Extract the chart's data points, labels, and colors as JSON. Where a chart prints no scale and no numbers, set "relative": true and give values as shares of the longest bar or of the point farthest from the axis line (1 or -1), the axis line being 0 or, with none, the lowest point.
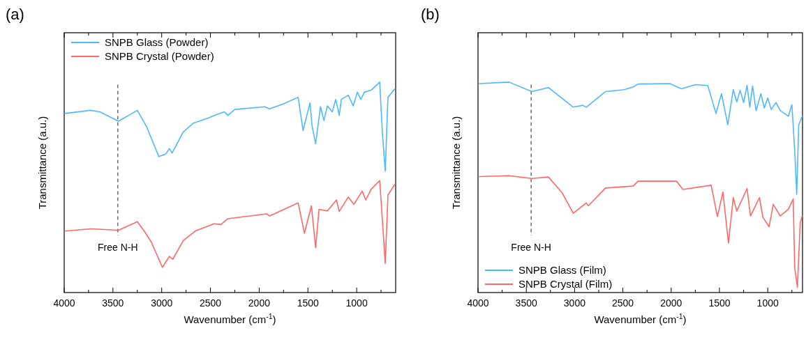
{
  "chart_data": [
    {
      "type": "line",
      "title": "(a)",
      "xlabel": "Wavenumber (cm$^{-1}$)",
      "ylabel": "Transmittance (a.u.)",
      "relative": true,
      "xlim": [
        4000,
        600
      ],
      "xticks": [
        4000,
        {
          "value": 3750,
          "label": null
        },
        3500,
        {
          "value": 3250,
          "label": null
        },
        3000,
        {
          "value": 2750,
          "label": null
        },
        2500,
        {
          "value": 2250,
          "label": null
        },
        2000,
        {
          "value": 1750,
          "label": null
        },
        1500,
        {
          "value": 1250,
          "label": null
        },
        1000,
        {
          "value": 750,
          "label": null
        }
      ],
      "tick_labels": "x",
      "grid": false,
      "legend": "top left",
      "line_style": "solid",
      "marker": "none",
      "ref_lines": [
        {
          "axis": "x",
          "value": 3450,
          "label": "Free N-H",
          "color": "#555555",
          "line_style": "dashed"
        }
      ],
      "series": [
        {
          "name": "SNPB Glass (Powder)",
          "color": "#4db8ff",
          "x": [
            3993,
            3729,
            3636,
            3443,
            3250,
            3157,
            3029,
            2957,
            2921,
            2893,
            2779,
            2679,
            2514,
            2443,
            2357,
            2321,
            2250,
            1943,
            1893,
            1750,
            1600,
            1550,
            1479,
            1457,
            1421,
            1371,
            1336,
            1300,
            1250,
            1214,
            1179,
            1157,
            1086,
            1036,
            993,
            957,
            921,
            850,
            764,
            736,
            707,
            679,
            607
          ],
          "values": [
            0.851,
            0.866,
            0.859,
            0.814,
            0.866,
            0.79,
            0.646,
            0.659,
            0.684,
            0.663,
            0.763,
            0.804,
            0.831,
            0.845,
            0.859,
            0.842,
            0.87,
            0.883,
            0.873,
            0.897,
            0.928,
            0.77,
            0.901,
            0.79,
            0.708,
            0.883,
            0.818,
            0.887,
            0.859,
            0.918,
            0.842,
            0.918,
            0.938,
            0.887,
            0.952,
            0.918,
            0.952,
            0.962,
            1,
            0.756,
            0.577,
            0.928,
            0.969
          ]
        },
        {
          "name": "SNPB Crystal (Powder)",
          "color": "#ff6666",
          "x": [
            3993,
            3729,
            3443,
            3250,
            3179,
            3107,
            2993,
            2921,
            2886,
            2779,
            2657,
            2464,
            2393,
            2321,
            1921,
            1893,
            1600,
            1536,
            1464,
            1421,
            1386,
            1300,
            1207,
            1179,
            1086,
            1029,
            943,
            907,
            850,
            764,
            729,
            707,
            679,
            607
          ],
          "values": [
            0.292,
            0.303,
            0.296,
            0.337,
            0.292,
            0.24,
            0.12,
            0.172,
            0.158,
            0.247,
            0.292,
            0.327,
            0.323,
            0.351,
            0.374,
            0.364,
            0.426,
            0.282,
            0.412,
            0.213,
            0.395,
            0.388,
            0.44,
            0.385,
            0.454,
            0.419,
            0.482,
            0.44,
            0.492,
            0.532,
            0.292,
            0.138,
            0.464,
            0.515
          ]
        }
      ]
    },
    {
      "type": "line",
      "title": "(b)",
      "xlabel": "Wavenumber (cm$^{-1}$)",
      "ylabel": "Transmittance (a.u.)",
      "relative": true,
      "xlim": [
        4000,
        640
      ],
      "xticks": [
        4000,
        {
          "value": 3750,
          "label": null
        },
        3500,
        {
          "value": 3250,
          "label": null
        },
        3000,
        {
          "value": 2750,
          "label": null
        },
        2500,
        {
          "value": 2250,
          "label": null
        },
        2000,
        {
          "value": 1750,
          "label": null
        },
        1500,
        {
          "value": 1250,
          "label": null
        },
        1000,
        {
          "value": 750,
          "label": null
        }
      ],
      "tick_labels": "x",
      "grid": false,
      "legend": "bottom left",
      "line_style": "solid",
      "marker": "none",
      "ref_lines": [
        {
          "axis": "x",
          "value": 3450,
          "label": "Free N-H",
          "color": "#555555",
          "line_style": "dashed"
        }
      ],
      "series": [
        {
          "name": "SNPB Glass (Film)",
          "color": "#4db8ff",
          "x": [
            3986,
            3679,
            3443,
            3271,
            3014,
            2914,
            2879,
            2679,
            2486,
            2393,
            2343,
            2014,
            1893,
            1750,
            1621,
            1536,
            1479,
            1414,
            1357,
            1321,
            1286,
            1250,
            1214,
            1186,
            1157,
            1121,
            1071,
            1036,
            1000,
            964,
            914,
            871,
            786,
            750,
            721,
            700,
            679,
            643
          ],
          "values": [
            0.993,
            1,
            0.955,
            0.974,
            0.881,
            0.89,
            0.881,
            0.955,
            0.964,
            0.977,
            0.991,
            0.993,
            0.968,
            0.988,
            0.984,
            0.851,
            0.945,
            0.797,
            0.964,
            0.906,
            0.961,
            0.903,
            0.984,
            0.881,
            0.981,
            0.865,
            0.945,
            0.877,
            0.925,
            0.87,
            0.903,
            0.865,
            0.838,
            0.893,
            0.677,
            0.467,
            0.797,
            0.838
          ]
        },
        {
          "name": "SNPB Crystal (Film)",
          "color": "#ff6666",
          "x": [
            3986,
            3679,
            3443,
            3271,
            3129,
            3014,
            2879,
            2857,
            2679,
            2393,
            2343,
            1943,
            1879,
            1586,
            1521,
            1464,
            1407,
            1357,
            1321,
            1214,
            1179,
            1086,
            1050,
            986,
            943,
            871,
            786,
            736,
            721,
            693,
            664,
            643
          ],
          "values": [
            0.551,
            0.555,
            0.542,
            0.549,
            0.474,
            0.377,
            0.426,
            0.413,
            0.497,
            0.506,
            0.529,
            0.529,
            0.49,
            0.51,
            0.361,
            0.478,
            0.235,
            0.451,
            0.387,
            0.494,
            0.364,
            0.451,
            0.357,
            0.313,
            0.419,
            0.364,
            0.396,
            0.445,
            0.119,
            0.025,
            0.332,
            0.364
          ]
        }
      ]
    }
  ]
}
